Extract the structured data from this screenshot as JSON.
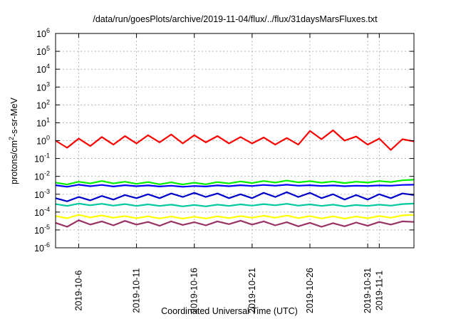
{
  "chart_data": {
    "type": "line",
    "title": "/data/run/goesPlots/archive/2019-11-04/flux/../flux/31daysMarsFluxes.txt",
    "xlabel": "Coordinated Universal Time (UTC)",
    "ylabel": "protons/cm²-s-sr-MeV",
    "ylabel_base": "protons/cm",
    "ylabel_sup": "2",
    "ylabel_rest": "-s-sr-MeV",
    "y_scale": "log",
    "ylim": [
      1e-06,
      1000000.0
    ],
    "xlim": [
      "2019-10-04",
      "2019-11-04"
    ],
    "grid": true,
    "legend": "none",
    "x_ticks": [
      "2019-10-6",
      "2019-10-11",
      "2019-10-16",
      "2019-10-21",
      "2019-10-26",
      "2019-10-31",
      "2019-11-1"
    ],
    "x_tick_dates": [
      "2019-10-06",
      "2019-10-11",
      "2019-10-16",
      "2019-10-21",
      "2019-10-26",
      "2019-10-31",
      "2019-11-01"
    ],
    "y_ticks": [
      {
        "value": 1e-06,
        "base": "10",
        "exp": "-6"
      },
      {
        "value": 1e-05,
        "base": "10",
        "exp": "-5"
      },
      {
        "value": 0.0001,
        "base": "10",
        "exp": "-4"
      },
      {
        "value": 0.001,
        "base": "10",
        "exp": "-3"
      },
      {
        "value": 0.01,
        "base": "10",
        "exp": "-2"
      },
      {
        "value": 0.1,
        "base": "10",
        "exp": "-1"
      },
      {
        "value": 1.0,
        "base": "10",
        "exp": "0"
      },
      {
        "value": 10.0,
        "base": "10",
        "exp": "1"
      },
      {
        "value": 100.0,
        "base": "10",
        "exp": "2"
      },
      {
        "value": 1000.0,
        "base": "10",
        "exp": "3"
      },
      {
        "value": 10000.0,
        "base": "10",
        "exp": "4"
      },
      {
        "value": 100000.0,
        "base": "10",
        "exp": "5"
      },
      {
        "value": 1000000.0,
        "base": "10",
        "exp": "6"
      }
    ],
    "x_dates": [
      "2019-10-04",
      "2019-10-05",
      "2019-10-06",
      "2019-10-07",
      "2019-10-08",
      "2019-10-09",
      "2019-10-10",
      "2019-10-11",
      "2019-10-12",
      "2019-10-13",
      "2019-10-14",
      "2019-10-15",
      "2019-10-16",
      "2019-10-17",
      "2019-10-18",
      "2019-10-19",
      "2019-10-20",
      "2019-10-21",
      "2019-10-22",
      "2019-10-23",
      "2019-10-24",
      "2019-10-25",
      "2019-10-26",
      "2019-10-27",
      "2019-10-28",
      "2019-10-29",
      "2019-10-30",
      "2019-10-31",
      "2019-11-01",
      "2019-11-02",
      "2019-11-03",
      "2019-11-04"
    ],
    "series": [
      {
        "color": "#ff0000",
        "values": [
          1.0,
          0.4,
          1.3,
          0.5,
          1.6,
          0.6,
          1.8,
          0.7,
          2.0,
          0.8,
          2.2,
          0.7,
          2.0,
          0.8,
          1.8,
          0.7,
          1.6,
          0.7,
          1.5,
          0.6,
          1.4,
          0.6,
          3.5,
          1.2,
          3.8,
          1.0,
          1.7,
          0.6,
          1.3,
          0.3,
          1.2,
          0.9
        ]
      },
      {
        "color": "#00ee00",
        "values": [
          0.0045,
          0.0035,
          0.005,
          0.004,
          0.0055,
          0.004,
          0.005,
          0.0038,
          0.0048,
          0.0036,
          0.0046,
          0.0035,
          0.0044,
          0.0036,
          0.0048,
          0.004,
          0.0052,
          0.0042,
          0.0055,
          0.0045,
          0.0058,
          0.0046,
          0.0054,
          0.0044,
          0.0052,
          0.0042,
          0.005,
          0.0045,
          0.0055,
          0.0048,
          0.006,
          0.0065
        ]
      },
      {
        "color": "#0000ff",
        "values": [
          0.0032,
          0.0026,
          0.0034,
          0.0028,
          0.0033,
          0.0027,
          0.0032,
          0.0028,
          0.0031,
          0.0027,
          0.003,
          0.0026,
          0.0029,
          0.0027,
          0.0031,
          0.0028,
          0.0032,
          0.0029,
          0.0033,
          0.003,
          0.0034,
          0.003,
          0.0032,
          0.0029,
          0.0031,
          0.0028,
          0.003,
          0.0029,
          0.0031,
          0.003,
          0.0033,
          0.0034
        ]
      },
      {
        "color": "#0000cc",
        "values": [
          0.0006,
          0.0004,
          0.0007,
          0.00045,
          0.0008,
          0.0005,
          0.0009,
          0.0006,
          0.001,
          0.0006,
          0.0011,
          0.0007,
          0.0012,
          0.0007,
          0.0011,
          0.0006,
          0.001,
          0.0006,
          0.0012,
          0.0007,
          0.0013,
          0.0007,
          0.0012,
          0.0006,
          0.001,
          0.0005,
          0.0009,
          0.0005,
          0.001,
          0.0006,
          0.0011,
          0.0009
        ]
      },
      {
        "color": "#00c8a0",
        "values": [
          0.00028,
          0.00022,
          0.0003,
          0.00024,
          0.00029,
          0.00023,
          0.00028,
          0.00022,
          0.00027,
          0.00022,
          0.00026,
          0.00021,
          0.00025,
          0.00021,
          0.00026,
          0.00022,
          0.00027,
          0.00023,
          0.00028,
          0.00024,
          0.00029,
          0.00023,
          0.00027,
          0.00022,
          0.00026,
          0.00021,
          0.00025,
          0.00022,
          0.00026,
          0.00023,
          0.00028,
          0.0003
        ]
      },
      {
        "color": "#ffff00",
        "values": [
          6e-05,
          4.5e-05,
          7e-05,
          5e-05,
          6.5e-05,
          4.8e-05,
          6e-05,
          4.5e-05,
          5.8e-05,
          4.4e-05,
          5.6e-05,
          4.3e-05,
          5.5e-05,
          4.4e-05,
          5.8e-05,
          4.6e-05,
          6e-05,
          4.8e-05,
          6.2e-05,
          4.8e-05,
          6.4e-05,
          4.6e-05,
          6e-05,
          4.4e-05,
          5.8e-05,
          4.3e-05,
          5.6e-05,
          4.5e-05,
          6e-05,
          4.8e-05,
          6.5e-05,
          7e-05
        ]
      },
      {
        "color": "#993366",
        "values": [
          2.5e-05,
          1.5e-05,
          3.5e-05,
          2e-05,
          3e-05,
          1.8e-05,
          3.2e-05,
          2e-05,
          2.8e-05,
          1.7e-05,
          3e-05,
          1.9e-05,
          2.7e-05,
          1.8e-05,
          3e-05,
          2.1e-05,
          3.3e-05,
          2e-05,
          3e-05,
          1.8e-05,
          2.7e-05,
          1.6e-05,
          2.5e-05,
          1.5e-05,
          2.4e-05,
          1.6e-05,
          2.6e-05,
          1.7e-05,
          2.8e-05,
          2e-05,
          3e-05,
          2.8e-05
        ]
      }
    ]
  }
}
